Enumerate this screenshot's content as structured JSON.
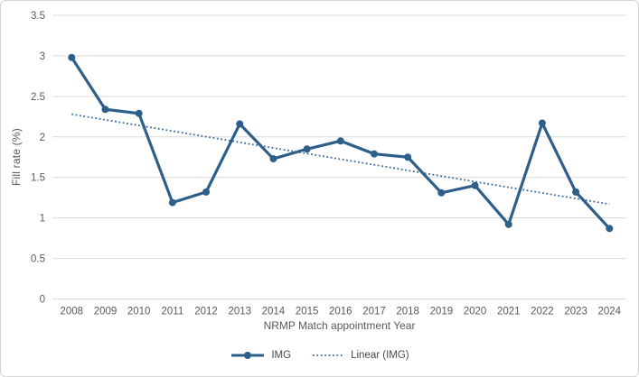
{
  "chart_data": {
    "type": "line",
    "title": "",
    "xlabel": "NRMP Match appointment Year",
    "ylabel": "Fill rate (%)",
    "ylim": [
      0,
      3.5
    ],
    "ytick_step": 0.5,
    "ytick_labels": [
      "0",
      "0.5",
      "1",
      "1.5",
      "2",
      "2.5",
      "3",
      "3.5"
    ],
    "grid": "horizontal",
    "legend_position": "bottom-center",
    "categories": [
      "2008",
      "2009",
      "2010",
      "2011",
      "2012",
      "2013",
      "2014",
      "2015",
      "2016",
      "2017",
      "2018",
      "2019",
      "2020",
      "2021",
      "2022",
      "2023",
      "2024"
    ],
    "series": [
      {
        "name": "IMG",
        "type": "line-with-markers",
        "color": "#2E5F8B",
        "values": [
          2.98,
          2.34,
          2.29,
          1.19,
          1.32,
          2.16,
          1.73,
          1.85,
          1.95,
          1.79,
          1.75,
          1.31,
          1.4,
          0.92,
          2.17,
          1.32,
          0.87
        ]
      },
      {
        "name": "Linear (IMG)",
        "type": "linear-trendline",
        "style": "dotted",
        "color": "#38699C",
        "start_value": 2.28,
        "end_value": 1.17
      }
    ]
  },
  "colors": {
    "background": "#FFFFFF",
    "frame_border": "#D4D4D4",
    "gridline": "#D9D9D9",
    "axis_text": "#595959",
    "legend_text": "#4A4A4A"
  }
}
